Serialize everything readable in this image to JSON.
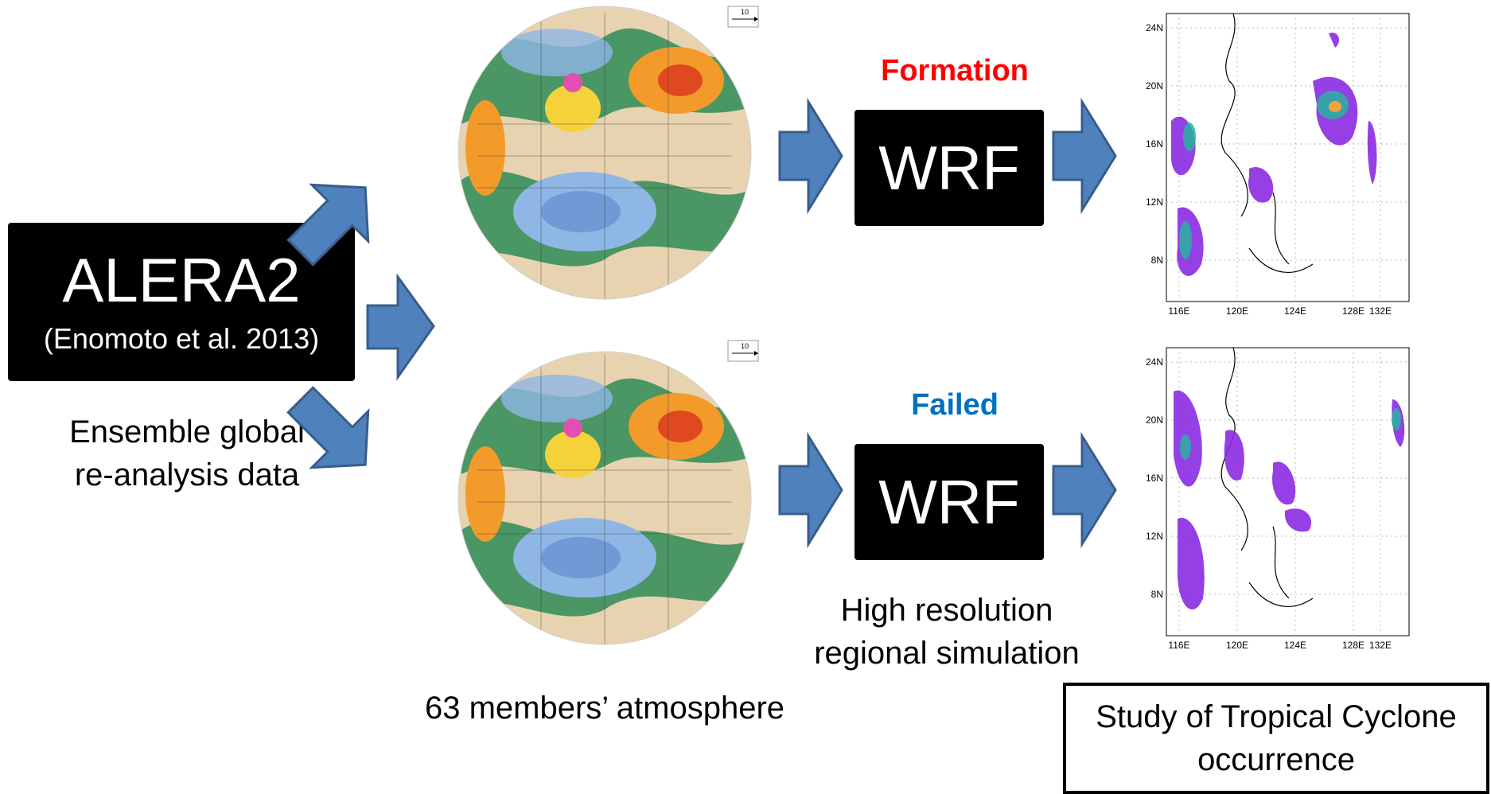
{
  "source": {
    "title": "ALERA2",
    "citation": "(Enomoto et al. 2013)",
    "caption_line1": "Ensemble global",
    "caption_line2": "re-analysis data"
  },
  "members_caption": "63 members’ atmosphere",
  "globe_scale_label": "10",
  "branches": [
    {
      "outcome": "Formation",
      "outcome_color": "#ff0000",
      "model": "WRF"
    },
    {
      "outcome": "Failed",
      "outcome_color": "#0070c0",
      "model": "WRF"
    }
  ],
  "simulation_caption_line1": "High resolution",
  "simulation_caption_line2": "regional simulation",
  "study_box_line1": "Study of Tropical Cyclone",
  "study_box_line2": "occurrence",
  "map_axes": {
    "lat_ticks": [
      "24N",
      "20N",
      "16N",
      "12N",
      "8N"
    ],
    "lon_ticks": [
      "116E",
      "120E",
      "124E",
      "128E",
      "132E"
    ]
  },
  "colors": {
    "arrow_fill": "#4f81bd",
    "arrow_stroke": "#385d8a",
    "box_bg": "#000000",
    "globe_green": "#2e8b57",
    "globe_tan": "#e8d3b0",
    "globe_orange": "#f29b2a",
    "globe_blue": "#8fb7e6",
    "precip_purple": "#8a2be2"
  }
}
